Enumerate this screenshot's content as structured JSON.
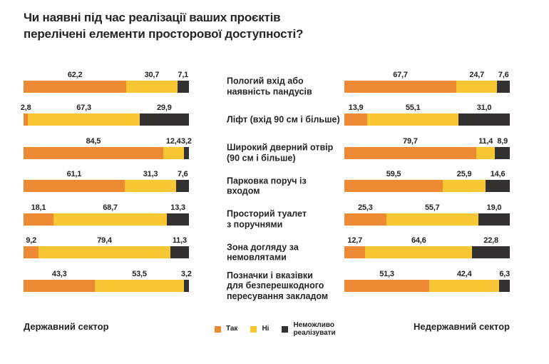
{
  "title": {
    "lines": [
      "Чи наявні під час реалізації ваших проєктів",
      "перелічені елементи просторової доступності?"
    ]
  },
  "colors": {
    "yes": "#EE8A33",
    "no": "#F9C733",
    "impossible": "#343230",
    "text": "#262422",
    "background": "#FFFFFF"
  },
  "legend": {
    "items": [
      {
        "label": "Так",
        "color_key": "yes"
      },
      {
        "label": "Ні",
        "color_key": "no"
      },
      {
        "label": "Неможливо реалізувати",
        "color_key": "impossible"
      }
    ]
  },
  "footer": {
    "left_sector": "Державний сектор",
    "right_sector": "Недержавний сектор"
  },
  "chart_data": {
    "type": "bar",
    "variant": "horizontal-stacked",
    "unit": "percent",
    "xlim": [
      0,
      100
    ],
    "decimal_separator": ",",
    "segments": [
      "Так",
      "Ні",
      "Неможливо реалізувати"
    ],
    "segment_colors": [
      "#EE8A33",
      "#F9C733",
      "#343230"
    ],
    "categories": [
      "Пологий вхід або\nнаявність пандусів",
      "Ліфт (вхід 90 см і більше)",
      "Широкий дверний отвір\n(90 см і більше)",
      "Парковка поруч із входом",
      "Просторий туалет\nз поручнями",
      "Зона догляду за\nнемовлятами",
      "Позначки і вказівки\nдля безперешкодного\nпересування закладом"
    ],
    "panels": [
      {
        "name": "Державний сектор",
        "rows": [
          [
            62.2,
            30.7,
            7.1
          ],
          [
            2.8,
            67.3,
            29.9
          ],
          [
            84.5,
            12.4,
            3.2
          ],
          [
            61.1,
            31.3,
            7.6
          ],
          [
            18.1,
            68.7,
            13.3
          ],
          [
            9.2,
            79.4,
            11.3
          ],
          [
            43.3,
            53.5,
            3.2
          ]
        ]
      },
      {
        "name": "Недержавний сектор",
        "rows": [
          [
            67.7,
            24.7,
            7.6
          ],
          [
            13.9,
            55.1,
            31.0
          ],
          [
            79.7,
            11.4,
            8.9
          ],
          [
            59.5,
            25.9,
            14.6
          ],
          [
            25.3,
            55.7,
            19.0
          ],
          [
            12.7,
            64.6,
            22.8
          ],
          [
            51.3,
            42.4,
            6.3
          ]
        ]
      }
    ]
  }
}
